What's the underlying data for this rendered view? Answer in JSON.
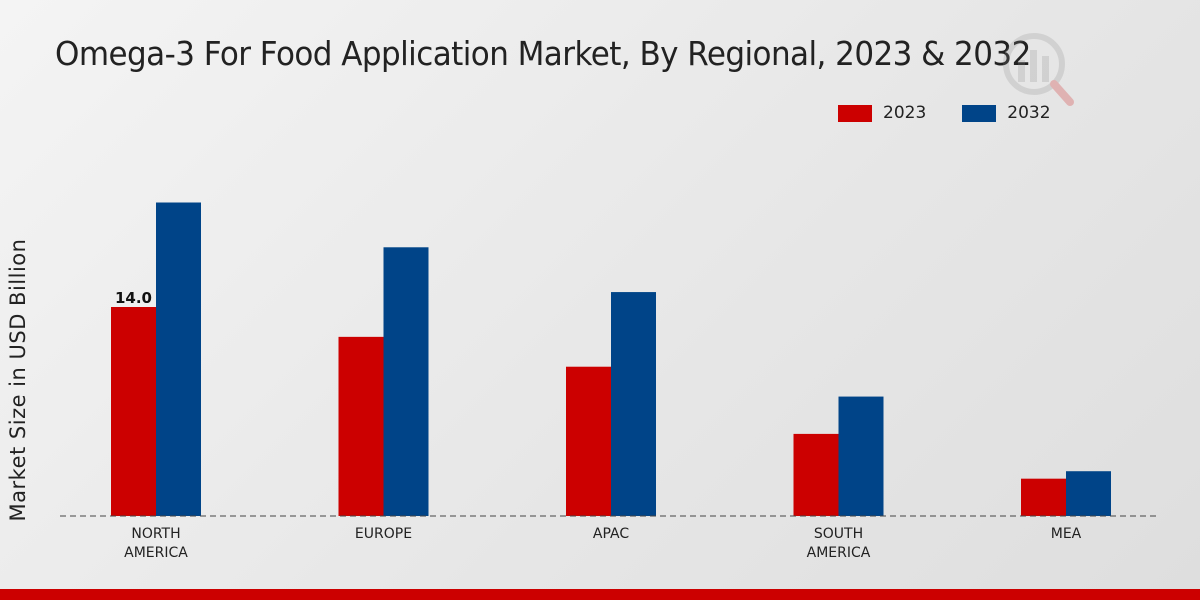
{
  "chart_data": {
    "type": "bar",
    "title": "Omega-3 For Food Application Market, By Regional, 2023 & 2032",
    "ylabel": "Market Size in USD Billion",
    "xlabel": "",
    "categories": [
      "NORTH\nAMERICA",
      "EUROPE",
      "APAC",
      "SOUTH\nAMERICA",
      "MEA"
    ],
    "series": [
      {
        "name": "2023",
        "color": "#cc0000",
        "values": [
          14.0,
          12.0,
          10.0,
          5.5,
          2.5
        ]
      },
      {
        "name": "2032",
        "color": "#004488",
        "values": [
          21.0,
          18.0,
          15.0,
          8.0,
          3.0
        ]
      }
    ],
    "data_labels": [
      {
        "series": 0,
        "index": 0,
        "text": "14.0"
      }
    ],
    "ylim": [
      0,
      28
    ],
    "grid": false,
    "legend": "top-right"
  },
  "colors": {
    "bottom_bar": "#cc0000"
  }
}
